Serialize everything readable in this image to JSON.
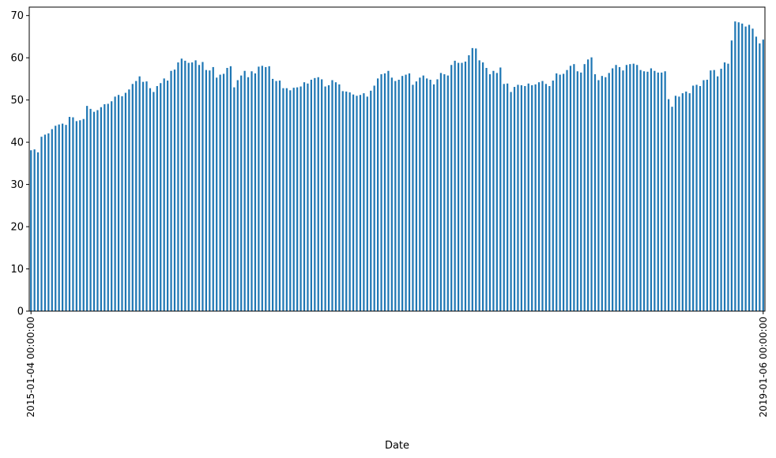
{
  "chart_data": {
    "type": "bar",
    "title": "",
    "xlabel": "Date",
    "ylabel": "",
    "ylim": [
      0,
      72
    ],
    "yticks": [
      0,
      10,
      20,
      30,
      40,
      50,
      60,
      70
    ],
    "bar_color": "#1f77b4",
    "grid": false,
    "legend": "none",
    "first_category": "2015-01-04 00:00:00",
    "last_category": "2019-01-06 00:00:00",
    "values": [
      38.1,
      38.3,
      37.6,
      41.3,
      41.8,
      42.1,
      43.1,
      43.9,
      44.2,
      44.4,
      44.1,
      46.0,
      45.9,
      45.0,
      45.2,
      45.5,
      48.6,
      47.9,
      47.2,
      47.6,
      48.3,
      49.0,
      49.1,
      49.7,
      50.8,
      51.2,
      50.9,
      51.7,
      52.5,
      53.8,
      54.5,
      55.6,
      54.3,
      54.4,
      52.8,
      51.9,
      53.3,
      54.0,
      55.1,
      54.6,
      56.9,
      57.2,
      58.9,
      59.8,
      59.3,
      58.8,
      58.9,
      59.4,
      58.3,
      59.0,
      57.1,
      57.0,
      57.8,
      55.3,
      56.0,
      56.2,
      57.6,
      58.0,
      53.0,
      54.7,
      55.8,
      56.9,
      55.4,
      56.8,
      56.3,
      57.9,
      58.1,
      57.8,
      58.0,
      55.0,
      54.5,
      54.6,
      52.8,
      52.8,
      52.3,
      52.9,
      53.0,
      53.2,
      54.2,
      53.9,
      54.8,
      55.2,
      55.4,
      54.9,
      53.2,
      53.5,
      54.7,
      54.2,
      53.7,
      52.1,
      52.0,
      51.8,
      51.3,
      51.0,
      51.2,
      51.6,
      50.8,
      52.2,
      53.4,
      55.1,
      56.1,
      56.3,
      56.9,
      55.3,
      54.5,
      54.8,
      55.7,
      56.0,
      56.3,
      53.6,
      54.4,
      55.3,
      55.8,
      55.1,
      54.8,
      53.7,
      54.9,
      56.4,
      56.1,
      55.8,
      58.3,
      59.3,
      58.8,
      58.8,
      59.1,
      60.6,
      62.3,
      62.2,
      59.4,
      58.9,
      57.6,
      56.1,
      56.9,
      56.4,
      57.7,
      53.8,
      53.9,
      51.9,
      53.1,
      53.6,
      53.5,
      53.3,
      53.9,
      53.5,
      53.7,
      54.2,
      54.5,
      53.8,
      53.3,
      54.6,
      56.3,
      56.0,
      56.2,
      57.1,
      58.1,
      58.5,
      56.8,
      56.5,
      58.5,
      59.6,
      60.1,
      56.1,
      54.7,
      55.7,
      55.4,
      56.4,
      57.5,
      58.3,
      57.8,
      57.0,
      58.3,
      58.5,
      58.6,
      58.3,
      57.1,
      56.8,
      56.7,
      57.5,
      56.9,
      56.5,
      56.5,
      56.8,
      50.2,
      48.4,
      51.0,
      50.8,
      51.6,
      52.0,
      51.6,
      53.4,
      53.6,
      53.3,
      54.7,
      54.8,
      57.0,
      57.1,
      55.6,
      57.4,
      58.9,
      58.6,
      64.1,
      68.6,
      68.4,
      68.1,
      67.4,
      67.8,
      66.9,
      65.0,
      63.4,
      64.3
    ]
  }
}
